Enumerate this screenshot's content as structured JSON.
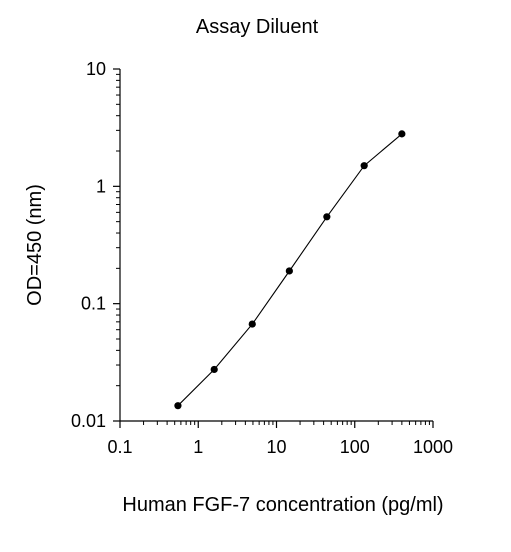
{
  "chart_data": {
    "type": "line",
    "title": "Assay Diluent",
    "xlabel": "Human FGF-7 concentration (pg/ml)",
    "ylabel": "OD=450 (nm)",
    "x_scale": "log",
    "y_scale": "log",
    "xlim": [
      0.1,
      1000
    ],
    "ylim": [
      0.01,
      10
    ],
    "x_ticks": [
      {
        "value": 0.1,
        "label": "0.1"
      },
      {
        "value": 1,
        "label": "1"
      },
      {
        "value": 10,
        "label": "10"
      },
      {
        "value": 100,
        "label": "100"
      },
      {
        "value": 1000,
        "label": "1000"
      }
    ],
    "y_ticks": [
      {
        "value": 0.01,
        "label": "0.01"
      },
      {
        "value": 0.1,
        "label": "0.1"
      },
      {
        "value": 1,
        "label": "1"
      },
      {
        "value": 10,
        "label": "10"
      }
    ],
    "grid": false,
    "legend": "none",
    "colors": {
      "line": "#000000",
      "marker": "#000000",
      "axis": "#000000"
    },
    "series": [
      {
        "x": [
          0.55,
          1.6,
          4.9,
          14.6,
          44,
          132,
          400
        ],
        "y": [
          0.0135,
          0.0275,
          0.067,
          0.19,
          0.55,
          1.5,
          2.8
        ]
      }
    ]
  }
}
